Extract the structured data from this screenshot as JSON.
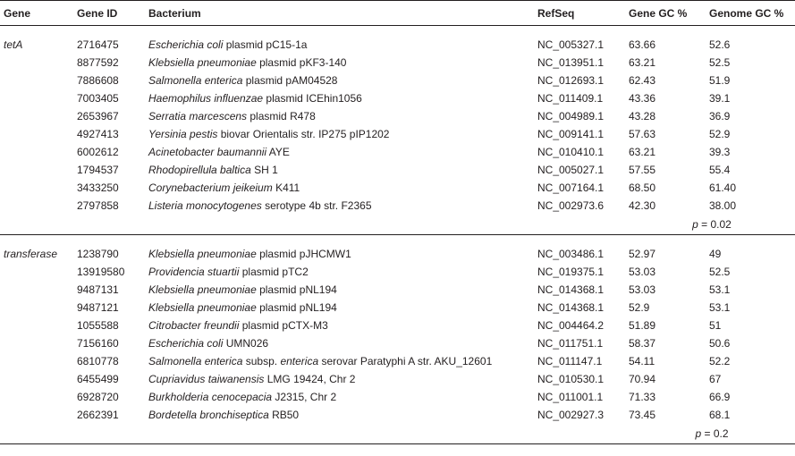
{
  "headers": [
    "Gene",
    "Gene ID",
    "Bacterium",
    "RefSeq",
    "Gene GC %",
    "Genome GC %"
  ],
  "groups": [
    {
      "gene": "tetA",
      "rows": [
        {
          "id": "2716475",
          "species": "Escherichia coli",
          "rest": " plasmid pC15-1a",
          "refseq": "NC_005327.1",
          "gene_gc": "63.66",
          "genome_gc": "52.6"
        },
        {
          "id": "8877592",
          "species": "Klebsiella pneumoniae",
          "rest": " plasmid pKF3-140",
          "refseq": "NC_013951.1",
          "gene_gc": "63.21",
          "genome_gc": "52.5"
        },
        {
          "id": "7886608",
          "species": "Salmonella enterica",
          "rest": " plasmid pAM04528",
          "refseq": "NC_012693.1",
          "gene_gc": "62.43",
          "genome_gc": "51.9"
        },
        {
          "id": "7003405",
          "species": "Haemophilus influenzae",
          "rest": " plasmid ICEhin1056",
          "refseq": "NC_011409.1",
          "gene_gc": "43.36",
          "genome_gc": "39.1"
        },
        {
          "id": "2653967",
          "species": "Serratia marcescens",
          "rest": " plasmid R478",
          "refseq": "NC_004989.1",
          "gene_gc": "43.28",
          "genome_gc": "36.9"
        },
        {
          "id": "4927413",
          "species": "Yersinia pestis",
          "rest": " biovar Orientalis str. IP275 pIP1202",
          "refseq": "NC_009141.1",
          "gene_gc": "57.63",
          "genome_gc": "52.9"
        },
        {
          "id": "6002612",
          "species": "Acinetobacter baumannii",
          "rest": " AYE",
          "refseq": "NC_010410.1",
          "gene_gc": "63.21",
          "genome_gc": "39.3"
        },
        {
          "id": "1794537",
          "species": "Rhodopirellula baltica",
          "rest": " SH 1",
          "refseq": "NC_005027.1",
          "gene_gc": "57.55",
          "genome_gc": "55.4"
        },
        {
          "id": "3433250",
          "species": "Corynebacterium jeikeium",
          "rest": " K411",
          "refseq": "NC_007164.1",
          "gene_gc": "68.50",
          "genome_gc": "61.40"
        },
        {
          "id": "2797858",
          "species": "Listeria monocytogenes",
          "rest": " serotype 4b str. F2365",
          "refseq": "NC_002973.6",
          "gene_gc": "42.30",
          "genome_gc": "38.00"
        }
      ],
      "p_symbol": "p",
      "p_value": " = 0.02"
    },
    {
      "gene": "transferase",
      "rows": [
        {
          "id": "1238790",
          "species": "Klebsiella pneumoniae",
          "rest": " plasmid pJHCMW1",
          "refseq": "NC_003486.1",
          "gene_gc": "52.97",
          "genome_gc": "49"
        },
        {
          "id": "13919580",
          "species": "Providencia stuartii",
          "rest": " plasmid pTC2",
          "refseq": "NC_019375.1",
          "gene_gc": "53.03",
          "genome_gc": "52.5"
        },
        {
          "id": "9487131",
          "species": "Klebsiella pneumoniae",
          "rest": " plasmid pNL194",
          "refseq": "NC_014368.1",
          "gene_gc": "53.03",
          "genome_gc": "53.1"
        },
        {
          "id": "9487121",
          "species": "Klebsiella pneumoniae",
          "rest": " plasmid pNL194",
          "refseq": "NC_014368.1",
          "gene_gc": "52.9",
          "genome_gc": "53.1"
        },
        {
          "id": "1055588",
          "species": "Citrobacter freundii",
          "rest": " plasmid pCTX-M3",
          "refseq": "NC_004464.2",
          "gene_gc": "51.89",
          "genome_gc": "51"
        },
        {
          "id": "7156160",
          "species": "Escherichia coli",
          "rest": " UMN026",
          "refseq": "NC_011751.1",
          "gene_gc": "58.37",
          "genome_gc": "50.6"
        },
        {
          "id": "6810778",
          "species": "Salmonella enterica",
          "rest": " subsp. ",
          "species2": "enterica",
          "rest2": " serovar Paratyphi A str. AKU_12601",
          "refseq": "NC_011147.1",
          "gene_gc": "54.11",
          "genome_gc": "52.2"
        },
        {
          "id": "6455499",
          "species": "Cupriavidus taiwanensis",
          "rest": " LMG 19424, Chr 2",
          "refseq": "NC_010530.1",
          "gene_gc": "70.94",
          "genome_gc": "67"
        },
        {
          "id": "6928720",
          "species": "Burkholderia cenocepacia",
          "rest": " J2315, Chr 2",
          "refseq": "NC_011001.1",
          "gene_gc": "71.33",
          "genome_gc": "66.9"
        },
        {
          "id": "2662391",
          "species": "Bordetella bronchiseptica",
          "rest": " RB50",
          "refseq": "NC_002927.3",
          "gene_gc": "73.45",
          "genome_gc": "68.1"
        }
      ],
      "p_symbol": "p",
      "p_value": " = 0.2"
    }
  ]
}
